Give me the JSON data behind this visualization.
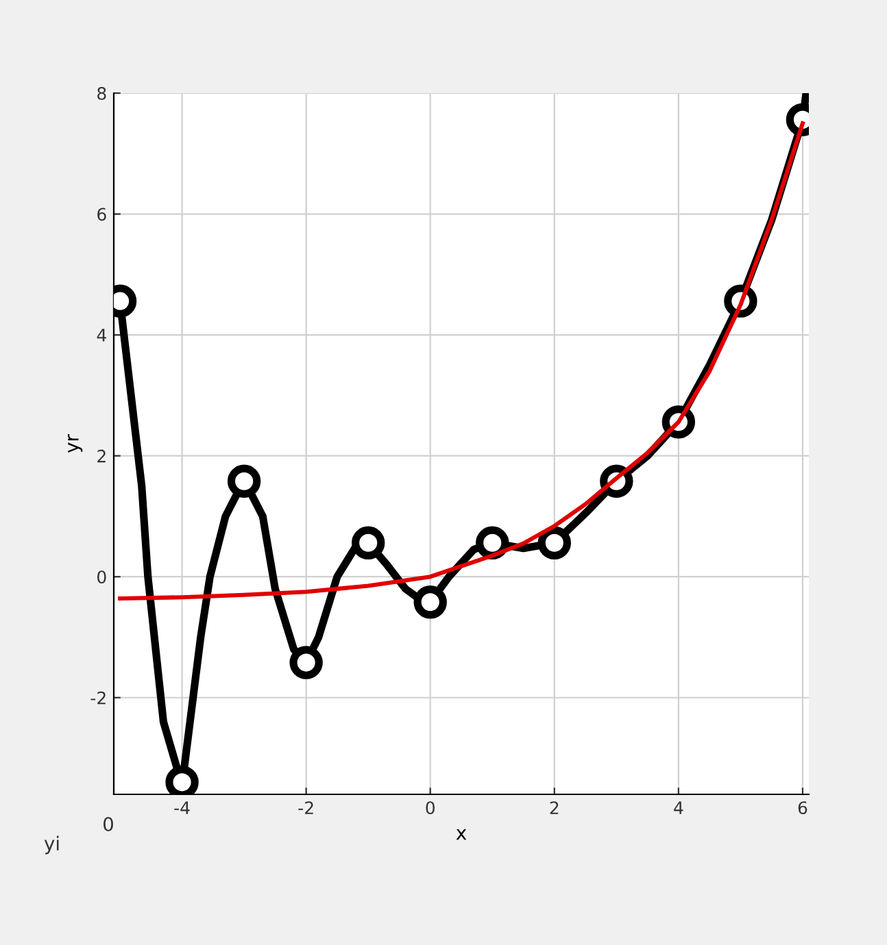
{
  "chart_data": {
    "type": "line",
    "xlabel": "x",
    "ylabel": "yr",
    "xlim": [
      -5.1,
      6.1
    ],
    "ylim": [
      -3.6,
      8
    ],
    "xticks": [
      -4,
      -2,
      0,
      2,
      4,
      6
    ],
    "yticks": [
      -2,
      0,
      2,
      4,
      6,
      8
    ],
    "grid": true,
    "series": [
      {
        "color": "#000000",
        "marker": "none",
        "x": [
          -5,
          -4.65,
          -4.55,
          -4.3,
          -4,
          -3.7,
          -3.55,
          -3.3,
          -3,
          -2.7,
          -2.5,
          -2.2,
          -2,
          -1.8,
          -1.5,
          -1.2,
          -1,
          -0.7,
          -0.4,
          -0.2,
          0,
          0.3,
          0.7,
          1,
          1.5,
          2,
          2.5,
          3,
          3.5,
          4,
          4.5,
          5,
          5.5,
          6,
          6.05
        ],
        "values": [
          4.56,
          1.5,
          0.0,
          -2.4,
          -3.45,
          -1.0,
          0.0,
          1.0,
          1.6,
          1.0,
          -0.2,
          -1.2,
          -1.42,
          -1.0,
          0.0,
          0.5,
          0.56,
          0.2,
          -0.2,
          -0.35,
          -0.42,
          0.0,
          0.45,
          0.56,
          0.47,
          0.56,
          1.05,
          1.58,
          2.0,
          2.56,
          3.5,
          4.56,
          5.9,
          7.56,
          7.95
        ]
      },
      {
        "type": "scatter",
        "color": "#000000",
        "marker": "circle",
        "x": [
          -5,
          -4,
          -3,
          -2,
          -1,
          0,
          1,
          2,
          3,
          4,
          5,
          6
        ],
        "values": [
          4.56,
          -3.4,
          1.58,
          -1.42,
          0.56,
          -0.42,
          0.56,
          0.56,
          1.58,
          2.56,
          4.56,
          7.56
        ]
      },
      {
        "color": "#e00000",
        "marker": "none",
        "x": [
          -5,
          -4,
          -3,
          -2,
          -1,
          0,
          1,
          1.5,
          2,
          2.5,
          3,
          3.5,
          4,
          4.5,
          5,
          5.5,
          6
        ],
        "values": [
          -0.36,
          -0.34,
          -0.3,
          -0.25,
          -0.15,
          0.0,
          0.35,
          0.55,
          0.84,
          1.2,
          1.63,
          2.05,
          2.56,
          3.4,
          4.5,
          5.9,
          7.5
        ]
      }
    ],
    "annotations": [
      "0",
      "yi"
    ]
  }
}
